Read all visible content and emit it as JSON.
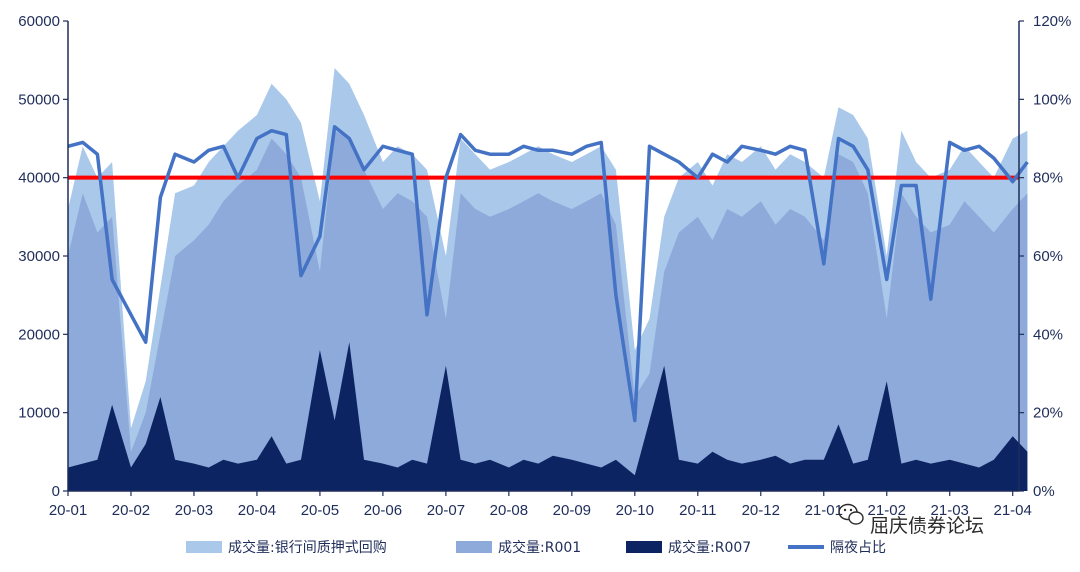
{
  "chart_data": {
    "type": "area",
    "x_ticks": [
      "20-01",
      "20-02",
      "20-03",
      "20-04",
      "20-05",
      "20-06",
      "20-07",
      "20-08",
      "20-09",
      "20-10",
      "20-11",
      "20-12",
      "21-01",
      "21-02",
      "21-03",
      "21-04"
    ],
    "y_left_ticks": [
      "0",
      "10000",
      "20000",
      "30000",
      "40000",
      "50000",
      "60000"
    ],
    "y_right_ticks": [
      "0%",
      "20%",
      "40%",
      "60%",
      "80%",
      "100%",
      "120%"
    ],
    "y_left_range": [
      0,
      60000
    ],
    "y_right_range": [
      0,
      120
    ],
    "reference_line": {
      "axis": "right",
      "value": 80,
      "color": "#ff0000"
    },
    "legend_position": "bottom",
    "series": [
      {
        "name": "成交量:银行间质押式回购",
        "axis": "left",
        "color": "#a9c8ea",
        "x": [
          "20-01",
          "20-01-08",
          "20-01-15",
          "20-01-22",
          "20-02",
          "20-02-08",
          "20-02-15",
          "20-02-22",
          "20-03",
          "20-03-08",
          "20-03-15",
          "20-03-22",
          "20-04",
          "20-04-08",
          "20-04-15",
          "20-04-22",
          "20-05",
          "20-05-08",
          "20-05-15",
          "20-05-22",
          "20-06",
          "20-06-08",
          "20-06-15",
          "20-06-22",
          "20-07",
          "20-07-08",
          "20-07-15",
          "20-07-22",
          "20-08",
          "20-08-08",
          "20-08-15",
          "20-08-22",
          "20-09",
          "20-09-08",
          "20-09-15",
          "20-09-22",
          "20-10",
          "20-10-08",
          "20-10-15",
          "20-10-22",
          "20-11",
          "20-11-08",
          "20-11-15",
          "20-11-22",
          "20-12",
          "20-12-08",
          "20-12-15",
          "20-12-22",
          "21-01",
          "21-01-08",
          "21-01-15",
          "21-01-22",
          "21-02",
          "21-02-08",
          "21-02-15",
          "21-02-22",
          "21-03",
          "21-03-08",
          "21-03-15",
          "21-03-22",
          "21-04",
          "21-04-08"
        ],
        "values": [
          36000,
          44000,
          40000,
          42000,
          8000,
          14000,
          26000,
          38000,
          39000,
          42000,
          44000,
          46000,
          48000,
          52000,
          50000,
          47000,
          37000,
          54000,
          52000,
          48000,
          42000,
          44000,
          43000,
          41000,
          30000,
          45000,
          43000,
          41000,
          42000,
          43000,
          44000,
          43000,
          42000,
          43000,
          44000,
          41000,
          18000,
          22000,
          35000,
          40000,
          42000,
          39000,
          43000,
          42000,
          44000,
          41000,
          43000,
          42000,
          40000,
          49000,
          48000,
          45000,
          30000,
          46000,
          42000,
          40000,
          41000,
          44000,
          42000,
          40000,
          45000,
          46000
        ]
      },
      {
        "name": "成交量:R001",
        "axis": "left",
        "color": "#8eaadb",
        "x": [
          "20-01",
          "20-01-08",
          "20-01-15",
          "20-01-22",
          "20-02",
          "20-02-08",
          "20-02-15",
          "20-02-22",
          "20-03",
          "20-03-08",
          "20-03-15",
          "20-03-22",
          "20-04",
          "20-04-08",
          "20-04-15",
          "20-04-22",
          "20-05",
          "20-05-08",
          "20-05-15",
          "20-05-22",
          "20-06",
          "20-06-08",
          "20-06-15",
          "20-06-22",
          "20-07",
          "20-07-08",
          "20-07-15",
          "20-07-22",
          "20-08",
          "20-08-08",
          "20-08-15",
          "20-08-22",
          "20-09",
          "20-09-08",
          "20-09-15",
          "20-09-22",
          "20-10",
          "20-10-08",
          "20-10-15",
          "20-10-22",
          "20-11",
          "20-11-08",
          "20-11-15",
          "20-11-22",
          "20-12",
          "20-12-08",
          "20-12-15",
          "20-12-22",
          "21-01",
          "21-01-08",
          "21-01-15",
          "21-01-22",
          "21-02",
          "21-02-08",
          "21-02-15",
          "21-02-22",
          "21-03",
          "21-03-08",
          "21-03-15",
          "21-03-22",
          "21-04",
          "21-04-08"
        ],
        "values": [
          30000,
          38000,
          33000,
          35000,
          5000,
          10000,
          20000,
          30000,
          32000,
          34000,
          37000,
          39000,
          41000,
          45000,
          43000,
          40000,
          28000,
          46000,
          45000,
          41000,
          36000,
          38000,
          37000,
          35000,
          22000,
          38000,
          36000,
          35000,
          36000,
          37000,
          38000,
          37000,
          36000,
          37000,
          38000,
          34000,
          12000,
          15000,
          28000,
          33000,
          35000,
          32000,
          36000,
          35000,
          37000,
          34000,
          36000,
          35000,
          32000,
          43000,
          42000,
          38000,
          22000,
          38000,
          35000,
          33000,
          34000,
          37000,
          35000,
          33000,
          36000,
          38000
        ]
      },
      {
        "name": "成交量:R007",
        "axis": "left",
        "color": "#0c2461",
        "x": [
          "20-01",
          "20-01-08",
          "20-01-15",
          "20-01-22",
          "20-02",
          "20-02-08",
          "20-02-15",
          "20-02-22",
          "20-03",
          "20-03-08",
          "20-03-15",
          "20-03-22",
          "20-04",
          "20-04-08",
          "20-04-15",
          "20-04-22",
          "20-05",
          "20-05-08",
          "20-05-15",
          "20-05-22",
          "20-06",
          "20-06-08",
          "20-06-15",
          "20-06-22",
          "20-07",
          "20-07-08",
          "20-07-15",
          "20-07-22",
          "20-08",
          "20-08-08",
          "20-08-15",
          "20-08-22",
          "20-09",
          "20-09-08",
          "20-09-15",
          "20-09-22",
          "20-10",
          "20-10-08",
          "20-10-15",
          "20-10-22",
          "20-11",
          "20-11-08",
          "20-11-15",
          "20-11-22",
          "20-12",
          "20-12-08",
          "20-12-15",
          "20-12-22",
          "21-01",
          "21-01-08",
          "21-01-15",
          "21-01-22",
          "21-02",
          "21-02-08",
          "21-02-15",
          "21-02-22",
          "21-03",
          "21-03-08",
          "21-03-15",
          "21-03-22",
          "21-04",
          "21-04-08"
        ],
        "values": [
          3000,
          3500,
          4000,
          11000,
          3000,
          6000,
          12000,
          4000,
          3500,
          3000,
          4000,
          3500,
          4000,
          7000,
          3500,
          4000,
          18000,
          9000,
          19000,
          4000,
          3500,
          3000,
          4000,
          3500,
          16000,
          4000,
          3500,
          4000,
          3000,
          4000,
          3500,
          4500,
          4000,
          3500,
          3000,
          4000,
          2000,
          9000,
          16000,
          4000,
          3500,
          5000,
          4000,
          3500,
          4000,
          4500,
          3500,
          4000,
          4000,
          8500,
          3500,
          4000,
          14000,
          3500,
          4000,
          3500,
          4000,
          3500,
          3000,
          4000,
          7000,
          5000
        ]
      },
      {
        "name": "隔夜占比",
        "axis": "right",
        "color": "#4472c4",
        "x": [
          "20-01",
          "20-01-08",
          "20-01-15",
          "20-01-22",
          "20-02",
          "20-02-08",
          "20-02-15",
          "20-02-22",
          "20-03",
          "20-03-08",
          "20-03-15",
          "20-03-22",
          "20-04",
          "20-04-08",
          "20-04-15",
          "20-04-22",
          "20-05",
          "20-05-08",
          "20-05-15",
          "20-05-22",
          "20-06",
          "20-06-08",
          "20-06-15",
          "20-06-22",
          "20-07",
          "20-07-08",
          "20-07-15",
          "20-07-22",
          "20-08",
          "20-08-08",
          "20-08-15",
          "20-08-22",
          "20-09",
          "20-09-08",
          "20-09-15",
          "20-09-22",
          "20-10",
          "20-10-08",
          "20-10-15",
          "20-10-22",
          "20-11",
          "20-11-08",
          "20-11-15",
          "20-11-22",
          "20-12",
          "20-12-08",
          "20-12-15",
          "20-12-22",
          "21-01",
          "21-01-08",
          "21-01-15",
          "21-01-22",
          "21-02",
          "21-02-08",
          "21-02-15",
          "21-02-22",
          "21-03",
          "21-03-08",
          "21-03-15",
          "21-03-22",
          "21-04",
          "21-04-08"
        ],
        "values": [
          88,
          89,
          86,
          54,
          45,
          38,
          75,
          86,
          84,
          87,
          88,
          80,
          90,
          92,
          91,
          55,
          65,
          93,
          90,
          82,
          88,
          87,
          86,
          45,
          80,
          91,
          87,
          86,
          86,
          88,
          87,
          87,
          86,
          88,
          89,
          50,
          18,
          88,
          86,
          84,
          80,
          86,
          84,
          88,
          87,
          86,
          88,
          87,
          58,
          90,
          88,
          82,
          54,
          78,
          78,
          49,
          89,
          87,
          88,
          85,
          79,
          84
        ]
      }
    ]
  },
  "legend": [
    {
      "label": "成交量:银行间质押式回购",
      "color": "#a9c8ea",
      "kind": "box"
    },
    {
      "label": "成交量:R001",
      "color": "#8eaadb",
      "kind": "box"
    },
    {
      "label": "成交量:R007",
      "color": "#0c2461",
      "kind": "box"
    },
    {
      "label": "隔夜占比",
      "color": "#4472c4",
      "kind": "line"
    }
  ],
  "watermark": {
    "text": "屈庆债券论坛",
    "icon": "wechat-icon"
  }
}
